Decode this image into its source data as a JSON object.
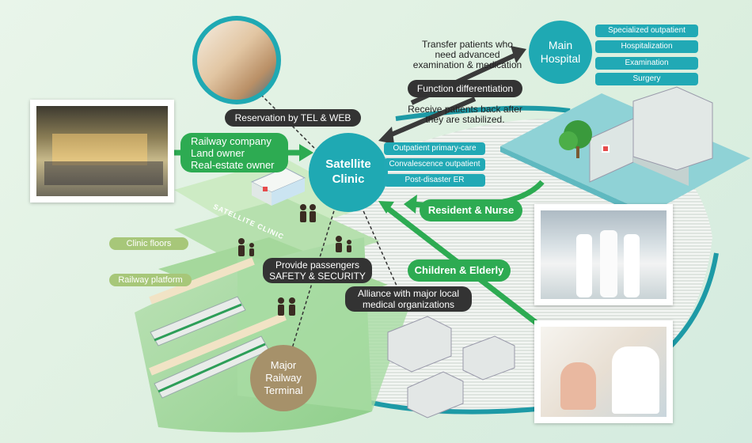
{
  "nodes": {
    "satellite_clinic": "Satellite\nClinic",
    "main_hospital": "Main\nHospital",
    "major_terminal": "Major\nRailway\nTerminal"
  },
  "hospital_services": [
    "Specialized outpatient",
    "Hospitalization",
    "Examination",
    "Surgery"
  ],
  "clinic_services": [
    "Outpatient primary-care",
    "Convalescence outpatient",
    "Post-disaster ER"
  ],
  "labels": {
    "transfer": "Transfer patients who\nneed advanced\nexamination & medication",
    "function_diff": "Function differentiation",
    "receive_back": "Receive patients back after\nthey are stabilized.",
    "reservation": "Reservation by TEL & WEB",
    "owners": "Railway company\nLand owner\nReal-estate owner",
    "resident_nurse": "Resident & Nurse",
    "children_elderly": "Children & Elderly",
    "safety": "Provide passengers\nSAFETY & SECURITY",
    "alliance": "Alliance with major local\nmedical organizations",
    "clinic_floors": "Clinic floors",
    "railway_platform": "Railway platform",
    "satellite_clinic_sign": "SATELLITE CLINIC"
  },
  "colors": {
    "teal": "#1fa9b3",
    "green": "#2dab52",
    "dark": "#333333",
    "olive": "#a7c779",
    "tan": "#a6916a"
  }
}
